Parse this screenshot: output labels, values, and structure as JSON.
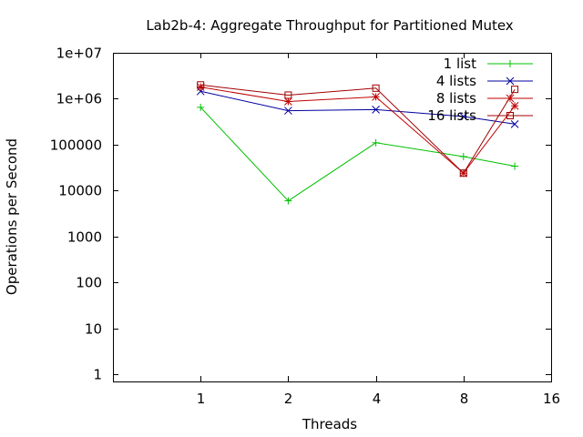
{
  "chart_data": {
    "type": "line",
    "title": "Lab2b-4: Aggregate Throughput for Partitioned Mutex",
    "xlabel": "Threads",
    "ylabel": "Operations per Second",
    "x_scale": "log2",
    "y_scale": "log10",
    "xlim": [
      0.5,
      16
    ],
    "ylim": [
      0.7,
      10000000
    ],
    "x_ticks": [
      1,
      2,
      4,
      8,
      16
    ],
    "x_tick_labels": [
      "1",
      "2",
      "4",
      "8",
      "16"
    ],
    "y_ticks": [
      1,
      10,
      100,
      1000,
      10000,
      100000,
      1000000,
      10000000
    ],
    "y_tick_labels": [
      "1",
      "10",
      "100",
      "1000",
      "10000",
      "100000",
      "1e+06",
      "1e+07"
    ],
    "legend_position": "top-right",
    "grid": false,
    "series": [
      {
        "name": "1 list",
        "color": "#00c000",
        "marker": "plus",
        "x": [
          1,
          2,
          4,
          8,
          12
        ],
        "y": [
          650000,
          6000,
          110000,
          55000,
          34000
        ]
      },
      {
        "name": "4 lists",
        "color": "#0000a0",
        "marker": "cross",
        "x": [
          1,
          2,
          4,
          8,
          12
        ],
        "y": [
          1450000,
          550000,
          580000,
          410000,
          280000
        ]
      },
      {
        "name": "8 lists",
        "color": "#c00000",
        "marker": "star",
        "x": [
          1,
          2,
          4,
          8,
          12
        ],
        "y": [
          1800000,
          870000,
          1100000,
          24000,
          700000
        ]
      },
      {
        "name": "16 lists",
        "color": "#a00000",
        "marker": "square",
        "x": [
          1,
          2,
          4,
          8,
          12
        ],
        "y": [
          2000000,
          1200000,
          1700000,
          24000,
          1600000
        ]
      }
    ]
  }
}
